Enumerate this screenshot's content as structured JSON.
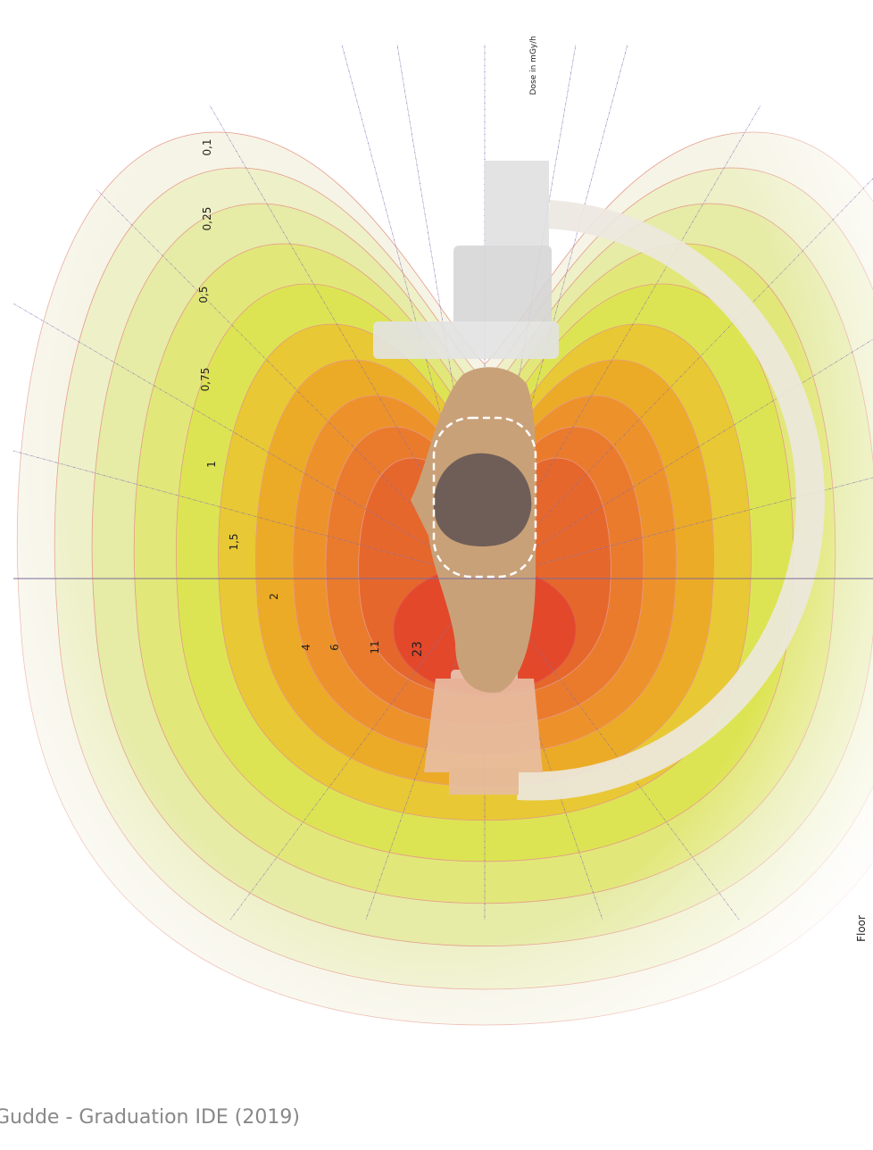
{
  "dose_unit_label": "Dose in mGy/h",
  "contour_labels": [
    "0,1",
    "0,25",
    "0,5",
    "0,75",
    "1",
    "1,5",
    "2",
    "4",
    "6",
    "11",
    "23"
  ],
  "floor_label": "Floor",
  "footer": "Gudde - Graduation IDE (2019)"
}
